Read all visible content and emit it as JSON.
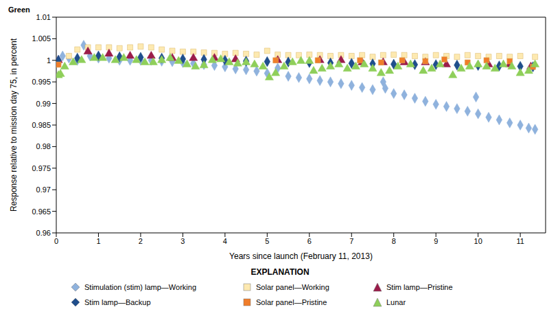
{
  "chart_data": {
    "type": "scatter",
    "title": "Green",
    "x_label": "Years since launch (February 11, 2013)",
    "y_label": "Response relative to mission day 75, in percent",
    "xlim": [
      0,
      11.6
    ],
    "xticks": [
      0,
      1,
      2,
      3,
      4,
      5,
      6,
      7,
      8,
      9,
      10,
      11
    ],
    "ylim": [
      0.96,
      1.01
    ],
    "yticks": [
      0.96,
      0.965,
      0.97,
      0.975,
      0.98,
      0.985,
      0.99,
      0.995,
      1,
      1.005,
      1.01
    ],
    "grid": false,
    "legend": "bottom",
    "legend_title": "EXPLANATION",
    "series": [
      {
        "name": "Stimulation (stim) lamp—Working",
        "color": "#8fb2dd",
        "marker": "diamond",
        "x": [
          0.05,
          0.15,
          0.3,
          0.5,
          0.65,
          0.8,
          1.0,
          1.25,
          1.5,
          1.75,
          2.0,
          2.25,
          2.5,
          2.75,
          3.0,
          3.25,
          3.5,
          3.75,
          4.0,
          4.25,
          4.5,
          4.75,
          5.0,
          5.25,
          5.5,
          5.75,
          6.0,
          6.25,
          6.5,
          6.75,
          7.0,
          7.25,
          7.5,
          7.75,
          7.8,
          8.0,
          8.25,
          8.5,
          8.75,
          9.0,
          9.25,
          9.5,
          9.75,
          9.95,
          10.0,
          10.25,
          10.5,
          10.75,
          11.0,
          11.2,
          11.35
        ],
        "values": [
          1.0,
          1.001,
          1.0005,
          1.0,
          1.0035,
          1.001,
          1.0005,
          1.0005,
          1.0,
          1.0,
          1.0,
          1.0,
          0.9998,
          0.9997,
          0.9995,
          0.9993,
          0.999,
          0.9988,
          0.9985,
          0.998,
          0.9978,
          0.9975,
          0.997,
          0.9982,
          0.9963,
          0.996,
          0.9957,
          0.9953,
          0.995,
          0.9946,
          0.9942,
          0.9937,
          0.9932,
          0.995,
          0.9935,
          0.9923,
          0.992,
          0.9912,
          0.9905,
          0.9898,
          0.9893,
          0.9888,
          0.9882,
          0.9915,
          0.9876,
          0.9868,
          0.9862,
          0.9855,
          0.985,
          0.9843,
          0.984
        ]
      },
      {
        "name": "Solar panel—Working",
        "color": "#fde9b0",
        "marker": "square",
        "x": [
          0.05,
          0.3,
          0.5,
          0.75,
          1.0,
          1.25,
          1.5,
          1.75,
          2.0,
          2.25,
          2.5,
          2.75,
          3.0,
          3.25,
          3.5,
          3.75,
          4.0,
          4.25,
          4.5,
          4.75,
          5.0,
          5.25,
          5.5,
          5.75,
          6.0,
          6.25,
          6.5,
          6.75,
          7.0,
          7.25,
          7.5,
          7.75,
          8.0,
          8.25,
          8.5,
          8.75,
          9.0,
          9.25,
          9.5,
          9.75,
          10.0,
          10.25,
          10.5,
          10.75,
          11.0,
          11.35
        ],
        "values": [
          0.9995,
          1.001,
          1.0025,
          1.003,
          1.003,
          1.003,
          1.0028,
          1.003,
          1.0032,
          1.003,
          1.0025,
          1.0022,
          1.002,
          1.002,
          1.0018,
          1.0017,
          1.0015,
          1.0017,
          1.0015,
          1.0013,
          1.0022,
          1.0013,
          1.0012,
          1.0012,
          1.0013,
          1.0012,
          1.001,
          1.0012,
          1.001,
          1.0012,
          1.0008,
          1.0012,
          1.0013,
          1.0012,
          1.001,
          1.0008,
          1.0012,
          1.001,
          1.0008,
          1.0012,
          1.001,
          1.0008,
          1.001,
          1.0008,
          1.001,
          1.0008
        ]
      },
      {
        "name": "Stim lamp—Pristine",
        "color": "#9b1c4a",
        "marker": "triangle",
        "x": [
          0.05,
          0.75,
          1.25,
          1.75,
          2.25,
          2.75,
          3.25,
          3.75,
          4.25,
          5.25,
          6.25,
          6.75,
          7.25,
          7.75,
          8.25,
          8.75,
          9.25,
          10.25,
          10.75,
          11.25
        ],
        "values": [
          1.0,
          1.002,
          1.0015,
          1.001,
          1.001,
          1.0005,
          1.0005,
          1.0005,
          1.0002,
          1.0,
          1.0,
          1.0,
          0.9995,
          0.9995,
          0.9995,
          0.9995,
          0.999,
          0.999,
          0.999,
          0.9985
        ]
      },
      {
        "name": "Stim lamp—Backup",
        "color": "#1f4e8c",
        "marker": "diamond",
        "x": [
          0.05,
          0.5,
          1.0,
          1.5,
          2.0,
          2.5,
          3.0,
          3.5,
          4.0,
          4.5,
          5.0,
          5.5,
          6.0,
          6.5,
          7.0,
          7.5,
          8.0,
          8.5,
          9.0,
          9.5,
          10.0,
          10.5,
          11.0,
          11.3
        ],
        "values": [
          1.0,
          1.0005,
          1.001,
          1.0008,
          1.0007,
          1.0005,
          1.0003,
          1.0002,
          1.0,
          0.9998,
          0.9997,
          0.9996,
          0.9995,
          0.9994,
          0.9993,
          0.9992,
          0.9991,
          0.999,
          0.999,
          0.9989,
          0.9988,
          0.9987,
          0.9986,
          0.9985
        ]
      },
      {
        "name": "Solar panel—Pristine",
        "color": "#f07d2a",
        "marker": "square",
        "x": [
          0.05,
          5.2,
          6.2,
          7.2,
          7.7,
          8.2,
          8.75,
          9.2,
          9.75,
          10.2,
          10.75,
          11.3
        ],
        "values": [
          0.999,
          1.0,
          1.0,
          1.0,
          0.9995,
          1.0,
          0.9998,
          1.0002,
          0.9995,
          1.0,
          0.9998,
          0.9985
        ]
      },
      {
        "name": "Lunar",
        "color": "#8fcf5a",
        "marker": "triangle",
        "x": [
          0.05,
          0.1,
          0.2,
          0.4,
          0.6,
          0.9,
          1.1,
          1.4,
          1.6,
          1.9,
          2.1,
          2.3,
          2.5,
          2.7,
          2.9,
          3.1,
          3.3,
          3.5,
          3.7,
          3.9,
          4.1,
          4.3,
          4.5,
          4.7,
          4.9,
          5.05,
          5.2,
          5.4,
          5.6,
          5.8,
          6.0,
          6.1,
          6.3,
          6.5,
          6.7,
          6.9,
          7.1,
          7.3,
          7.5,
          7.7,
          7.9,
          8.1,
          8.4,
          8.7,
          8.9,
          9.1,
          9.4,
          9.6,
          9.8,
          10.0,
          10.2,
          10.4,
          10.6,
          10.8,
          11.0,
          11.2,
          11.35
        ],
        "values": [
          0.9965,
          0.9968,
          0.9985,
          0.9995,
          1.0,
          1.0005,
          1.0005,
          1.0,
          1.0005,
          1.0,
          0.9995,
          0.9995,
          1.0,
          1.0005,
          0.9998,
          0.999,
          0.9985,
          0.9988,
          1.0,
          1.0002,
          0.9995,
          0.9992,
          0.9995,
          0.999,
          0.9985,
          0.996,
          0.997,
          0.9985,
          0.9995,
          0.9998,
          0.9998,
          0.9975,
          0.998,
          0.9985,
          0.999,
          0.998,
          0.9985,
          0.999,
          0.998,
          0.997,
          0.9975,
          0.9985,
          0.999,
          0.9975,
          0.998,
          0.999,
          0.9965,
          0.998,
          0.9985,
          0.999,
          0.9985,
          0.998,
          0.999,
          0.9985,
          0.997,
          0.9975,
          0.999
        ]
      }
    ]
  }
}
